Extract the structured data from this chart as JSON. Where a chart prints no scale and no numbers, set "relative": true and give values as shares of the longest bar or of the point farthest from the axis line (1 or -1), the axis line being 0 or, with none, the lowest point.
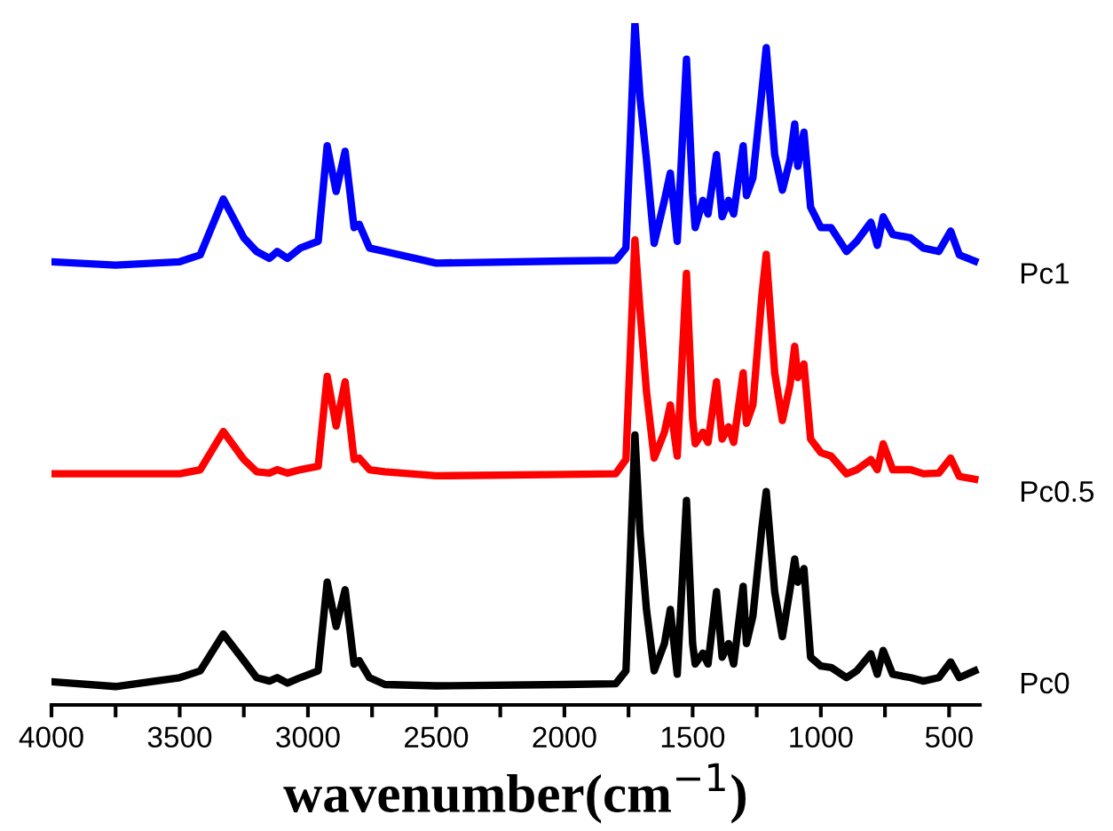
{
  "chart_data": {
    "type": "line",
    "relative": true,
    "xlabel": "wavenumber(cm$^{−1}$)",
    "x": [
      4000,
      3750,
      3500,
      3420,
      3330,
      3250,
      3200,
      3150,
      3120,
      3080,
      3030,
      2960,
      2925,
      2890,
      2855,
      2820,
      2800,
      2760,
      2700,
      2500,
      2000,
      1800,
      1760,
      1725,
      1705,
      1680,
      1650,
      1610,
      1587,
      1560,
      1524,
      1500,
      1490,
      1460,
      1440,
      1407,
      1385,
      1360,
      1340,
      1303,
      1290,
      1265,
      1230,
      1213,
      1180,
      1150,
      1120,
      1102,
      1090,
      1066,
      1040,
      1000,
      960,
      900,
      860,
      805,
      780,
      757,
      720,
      650,
      600,
      540,
      494,
      460,
      400
    ],
    "xlim": [
      4000,
      380
    ],
    "xticks": [
      4000,
      {
        "value": 3750,
        "label": null
      },
      3500,
      {
        "value": 3250,
        "label": null
      },
      3000,
      {
        "value": 2750,
        "label": null
      },
      2500,
      {
        "value": 2250,
        "label": null
      },
      2000,
      {
        "value": 1750,
        "label": null
      },
      1500,
      {
        "value": 1250,
        "label": null
      },
      1000,
      {
        "value": 750,
        "label": null
      },
      500
    ],
    "tick_labels": "x",
    "grid": false,
    "legend": false,
    "marker": "none",
    "line_style": "solid",
    "series": [
      {
        "name": "Pc1",
        "color": "#0000ff",
        "values": [
          0.65,
          0.645,
          0.65,
          0.66,
          0.742,
          0.685,
          0.665,
          0.655,
          0.665,
          0.655,
          0.67,
          0.68,
          0.82,
          0.753,
          0.812,
          0.7,
          0.705,
          0.67,
          0.665,
          0.648,
          0.651,
          0.652,
          0.67,
          1.0,
          0.89,
          0.8,
          0.677,
          0.74,
          0.78,
          0.68,
          0.947,
          0.75,
          0.7,
          0.74,
          0.72,
          0.807,
          0.716,
          0.74,
          0.72,
          0.82,
          0.747,
          0.773,
          0.9,
          0.964,
          0.807,
          0.755,
          0.8,
          0.852,
          0.79,
          0.84,
          0.73,
          0.7,
          0.7,
          0.665,
          0.68,
          0.708,
          0.674,
          0.716,
          0.69,
          0.685,
          0.67,
          0.665,
          0.695,
          0.66,
          0.651
        ]
      },
      {
        "name": "Pc0.5",
        "color": "#ff0000",
        "values": [
          0.339,
          0.339,
          0.339,
          0.345,
          0.401,
          0.36,
          0.342,
          0.34,
          0.345,
          0.34,
          0.345,
          0.35,
          0.482,
          0.409,
          0.474,
          0.36,
          0.362,
          0.345,
          0.342,
          0.336,
          0.338,
          0.339,
          0.36,
          0.682,
          0.578,
          0.46,
          0.362,
          0.4,
          0.44,
          0.365,
          0.633,
          0.42,
          0.383,
          0.4,
          0.385,
          0.474,
          0.39,
          0.408,
          0.385,
          0.487,
          0.413,
          0.44,
          0.6,
          0.661,
          0.487,
          0.417,
          0.47,
          0.526,
          0.48,
          0.5,
          0.39,
          0.37,
          0.365,
          0.339,
          0.345,
          0.36,
          0.345,
          0.383,
          0.345,
          0.345,
          0.339,
          0.34,
          0.362,
          0.335,
          0.331
        ]
      },
      {
        "name": "Pc0",
        "color": "#000000",
        "values": [
          0.034,
          0.027,
          0.04,
          0.05,
          0.104,
          0.065,
          0.04,
          0.035,
          0.04,
          0.032,
          0.04,
          0.05,
          0.18,
          0.115,
          0.169,
          0.06,
          0.065,
          0.04,
          0.03,
          0.028,
          0.03,
          0.031,
          0.05,
          0.396,
          0.253,
          0.14,
          0.05,
          0.09,
          0.14,
          0.045,
          0.3,
          0.09,
          0.06,
          0.076,
          0.06,
          0.166,
          0.07,
          0.09,
          0.06,
          0.174,
          0.09,
          0.13,
          0.26,
          0.313,
          0.166,
          0.1,
          0.17,
          0.214,
          0.18,
          0.2,
          0.07,
          0.057,
          0.055,
          0.04,
          0.05,
          0.075,
          0.045,
          0.08,
          0.045,
          0.04,
          0.035,
          0.04,
          0.063,
          0.04,
          0.05
        ]
      }
    ]
  }
}
